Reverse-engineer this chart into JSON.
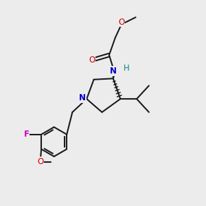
{
  "background_color": "#ececec",
  "bond_color": "#1a1a1a",
  "atom_colors": {
    "O": "#cc0000",
    "N": "#0000cc",
    "F": "#cc00cc",
    "H": "#008888",
    "C": "#1a1a1a"
  },
  "figsize": [
    3.0,
    3.0
  ],
  "dpi": 100,
  "lw": 1.5
}
